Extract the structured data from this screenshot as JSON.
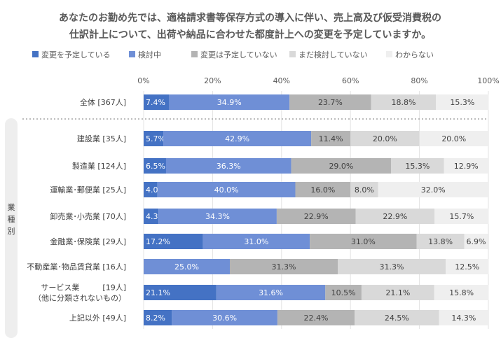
{
  "chart_data": {
    "type": "bar",
    "orientation": "horizontal",
    "stacked": true,
    "title_lines": [
      "あなたのお勤め先では、適格請求書等保存方式の導入に伴い、売上高及び仮受消費税の",
      "仕訳計上について、出荷や納品に合わせた都度計上への変更を予定していますか。"
    ],
    "xlim": [
      0,
      100
    ],
    "x_ticks": [
      "0%",
      "20%",
      "40%",
      "60%",
      "80%",
      "100%"
    ],
    "legend_position": "top",
    "group_label": "業種別",
    "categories": [
      [
        "全体 [367人]"
      ],
      [
        "建設業 [35人]"
      ],
      [
        "製造業 [124人]"
      ],
      [
        "運輸業･郵便業 [25人]"
      ],
      [
        "卸売業･小売業 [70人]"
      ],
      [
        "金融業･保険業 [29人]"
      ],
      [
        "不動産業･物品賃貸業 [16人]"
      ],
      [
        "サービス業　　　[19人]",
        "（他に分類されないもの）"
      ],
      [
        "上記以外 [49人]"
      ]
    ],
    "series": [
      {
        "name": "変更を予定している",
        "color": "#4472c4",
        "label_color": "#ffffff",
        "values": [
          7.4,
          5.7,
          6.5,
          4.0,
          4.3,
          17.2,
          0,
          21.1,
          8.2
        ],
        "labels": [
          "7.4%",
          "5.7%",
          "6.5%",
          "4.0%",
          "4.3%",
          "17.2%",
          "",
          "21.1%",
          "8.2%"
        ]
      },
      {
        "name": "検討中",
        "color": "#6f8fd6",
        "label_color": "#ffffff",
        "values": [
          34.9,
          42.9,
          36.3,
          40.0,
          34.3,
          31.0,
          25.0,
          31.6,
          30.6
        ],
        "labels": [
          "34.9%",
          "42.9%",
          "36.3%",
          "40.0%",
          "34.3%",
          "31.0%",
          "25.0%",
          "31.6%",
          "30.6%"
        ]
      },
      {
        "name": "変更は予定していない",
        "color": "#b4b4b4",
        "label_color": "#404040",
        "values": [
          23.7,
          11.4,
          29.0,
          16.0,
          22.9,
          31.0,
          31.3,
          10.5,
          22.4
        ],
        "labels": [
          "23.7%",
          "11.4%",
          "29.0%",
          "16.0%",
          "22.9%",
          "31.0%",
          "31.3%",
          "10.5%",
          "22.4%"
        ]
      },
      {
        "name": "まだ検討していない",
        "color": "#d9d9d9",
        "label_color": "#404040",
        "values": [
          18.8,
          20.0,
          15.3,
          8.0,
          22.9,
          13.8,
          31.3,
          21.1,
          24.5
        ],
        "labels": [
          "18.8%",
          "20.0%",
          "15.3%",
          "8.0%",
          "22.9%",
          "13.8%",
          "31.3%",
          "21.1%",
          "24.5%"
        ]
      },
      {
        "name": "わからない",
        "color": "#efefef",
        "label_color": "#404040",
        "values": [
          15.3,
          20.0,
          12.9,
          32.0,
          15.7,
          6.9,
          12.5,
          15.8,
          14.3
        ],
        "labels": [
          "15.3%",
          "20.0%",
          "12.9%",
          "32.0%",
          "15.7%",
          "6.9%",
          "12.5%",
          "15.8%",
          "14.3%"
        ]
      }
    ]
  }
}
